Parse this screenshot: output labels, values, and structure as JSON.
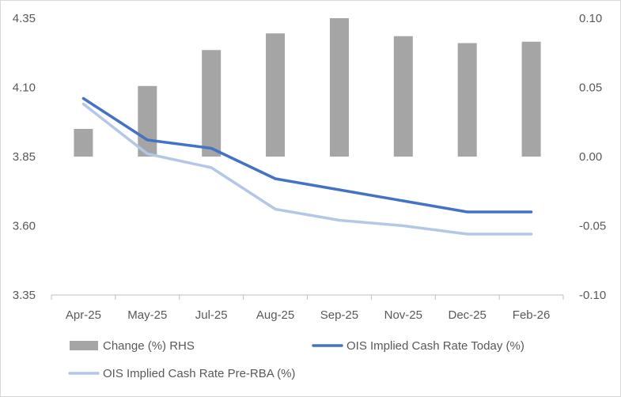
{
  "chart_data": {
    "type": "bar+line",
    "categories": [
      "Apr-25",
      "May-25",
      "Jul-25",
      "Aug-25",
      "Sep-25",
      "Nov-25",
      "Dec-25",
      "Feb-26"
    ],
    "left_axis": {
      "min": 3.35,
      "max": 4.35,
      "step": 0.25,
      "ticks": [
        "3.35",
        "3.60",
        "3.85",
        "4.10",
        "4.35"
      ]
    },
    "right_axis": {
      "min": -0.1,
      "max": 0.1,
      "step": 0.05,
      "ticks": [
        "-0.10",
        "-0.05",
        "0.00",
        "0.05",
        "0.10"
      ]
    },
    "series": [
      {
        "name": "Change (%) RHS",
        "type": "bar",
        "axis": "right",
        "color": "#a5a5a5",
        "values": [
          0.02,
          0.051,
          0.077,
          0.089,
          0.1,
          0.087,
          0.082,
          0.083
        ]
      },
      {
        "name": "OIS Implied Cash Rate Today (%)",
        "type": "line",
        "axis": "left",
        "color": "#4472c4",
        "values": [
          4.06,
          3.91,
          3.88,
          3.77,
          3.73,
          3.69,
          3.65,
          3.65
        ]
      },
      {
        "name": "OIS Implied Cash Rate Pre-RBA (%)",
        "type": "line",
        "axis": "left",
        "color": "#b4c7e7",
        "values": [
          4.04,
          3.86,
          3.81,
          3.66,
          3.62,
          3.6,
          3.57,
          3.57
        ]
      }
    ],
    "title": "",
    "legend_position": "bottom"
  }
}
